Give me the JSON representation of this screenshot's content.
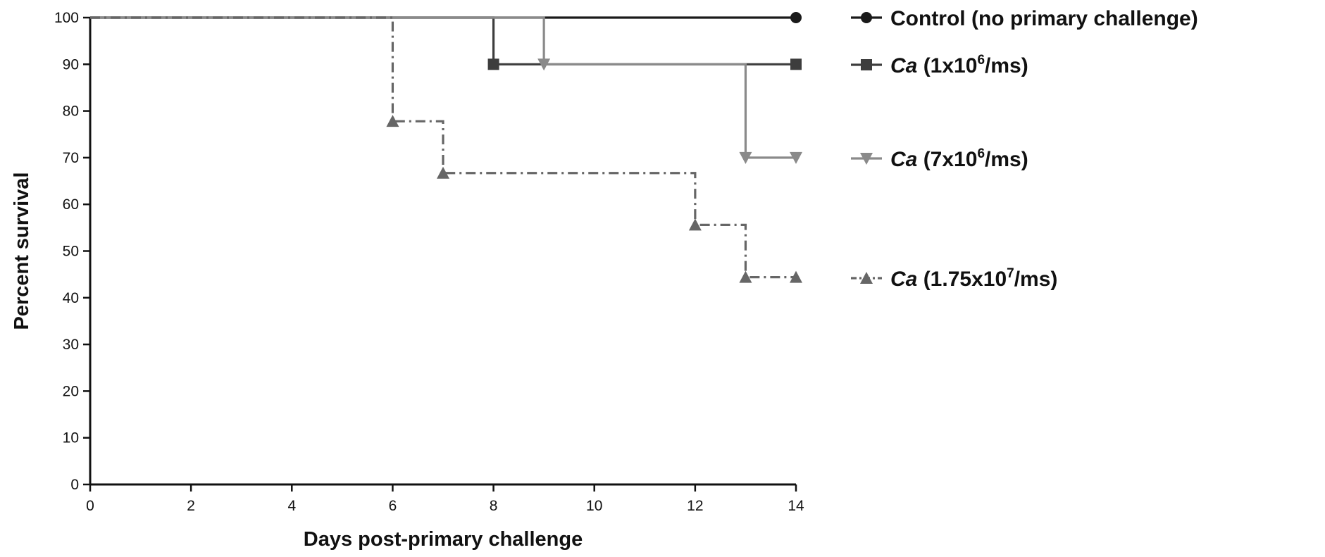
{
  "chart_data": {
    "type": "line",
    "step": true,
    "xlabel": "Days post-primary challenge",
    "ylabel": "Percent survival",
    "xlim": [
      0,
      14
    ],
    "ylim": [
      0,
      100
    ],
    "xticks": [
      0,
      2,
      4,
      6,
      8,
      10,
      12,
      14
    ],
    "yticks": [
      0,
      10,
      20,
      30,
      40,
      50,
      60,
      70,
      80,
      90,
      100
    ],
    "grid": false,
    "legend_position": "right",
    "series": [
      {
        "name": "Control (no primary challenge)",
        "legend": {
          "prefix": "",
          "italic": "",
          "main": "Control (no primary challenge)",
          "sup": "",
          "suffix": ""
        },
        "color": "#1a1a1a",
        "marker": "circle",
        "dash": "solid",
        "x": [
          0,
          14
        ],
        "y": [
          100,
          100
        ],
        "marked_x": [
          14
        ]
      },
      {
        "name": "Ca (1x10^6/ms)",
        "legend": {
          "italic": "Ca",
          "main": " (1x10",
          "sup": "6",
          "suffix": "/ms)"
        },
        "color": "#3d3d3d",
        "marker": "square",
        "dash": "solid",
        "x": [
          0,
          8,
          14
        ],
        "y": [
          100,
          90,
          90
        ],
        "marked_x": [
          8,
          14
        ]
      },
      {
        "name": "Ca (7x10^6/ms)",
        "legend": {
          "italic": "Ca",
          "main": " (7x10",
          "sup": "6",
          "suffix": "/ms)"
        },
        "color": "#8a8a8a",
        "marker": "triangle-down",
        "dash": "solid",
        "x": [
          0,
          9,
          13,
          14
        ],
        "y": [
          100,
          90,
          70,
          70
        ],
        "marked_x": [
          9,
          13,
          14
        ]
      },
      {
        "name": "Ca (1.75x10^7/ms)",
        "legend": {
          "italic": "Ca",
          "main": " (1.75x10",
          "sup": "7",
          "suffix": "/ms)"
        },
        "color": "#666666",
        "marker": "triangle-up",
        "dash": "dashdot",
        "x": [
          0,
          6,
          7,
          12,
          13,
          14
        ],
        "y": [
          100,
          77.8,
          66.7,
          55.6,
          44.4,
          44.4
        ],
        "marked_x": [
          6,
          7,
          12,
          13,
          14
        ]
      }
    ]
  }
}
